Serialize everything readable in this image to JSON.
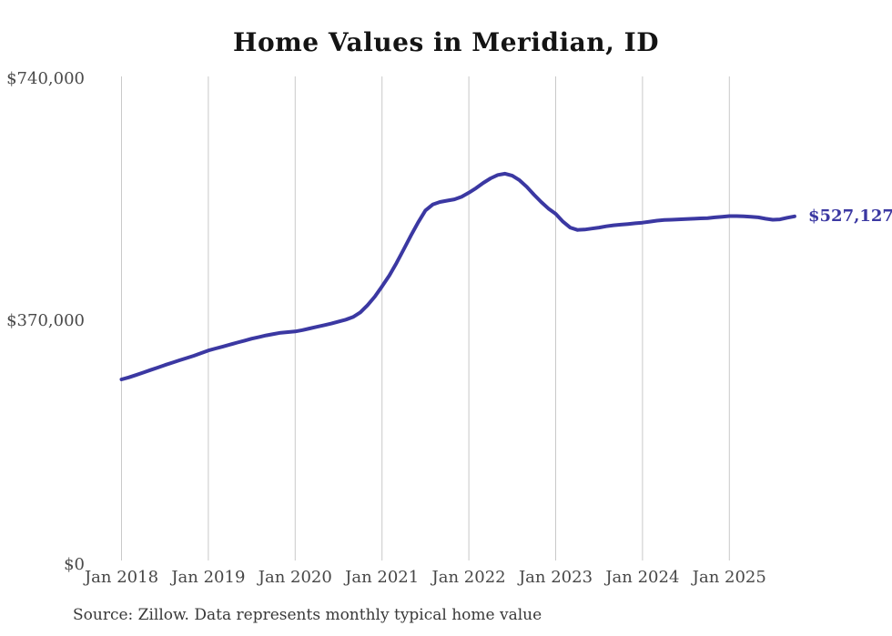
{
  "source_note": "Source: Zillow. Data represents monthly typical home value",
  "colors": {
    "line": "#3b38a2",
    "end_label": "#3b38a2",
    "grid": "#c9c9c9",
    "title": "#141414",
    "axis_text": "#474747",
    "source_text": "#383838",
    "background": "#ffffff"
  },
  "chart_data": {
    "type": "line",
    "title": "Home Values in Meridian, ID",
    "xlabel": "",
    "ylabel": "",
    "ylim": [
      0,
      740000
    ],
    "grid": "vertical-only",
    "legend_position": "none",
    "y_ticks": [
      {
        "label": "$0",
        "value": 0
      },
      {
        "label": "$370,000",
        "value": 370000
      },
      {
        "label": "$740,000",
        "value": 740000
      }
    ],
    "x_ticks": [
      "Jan 2018",
      "Jan 2019",
      "Jan 2020",
      "Jan 2021",
      "Jan 2022",
      "Jan 2023",
      "Jan 2024",
      "Jan 2025"
    ],
    "annotation": {
      "text": "$527,127",
      "value": 527127
    },
    "series": [
      {
        "name": "Monthly typical home value",
        "color": "#3b38a2",
        "cadence": "monthly",
        "start": "2018-01",
        "end": "2025-10",
        "values": [
          279000,
          282000,
          285600,
          289400,
          293200,
          297000,
          300800,
          304500,
          308000,
          311500,
          315000,
          319000,
          323000,
          326000,
          329000,
          332000,
          335000,
          338000,
          341000,
          343500,
          346000,
          348000,
          350000,
          351000,
          352000,
          354000,
          356500,
          359000,
          361500,
          364000,
          367000,
          370000,
          374000,
          381000,
          392000,
          405000,
          420500,
          437000,
          456000,
          477000,
          498000,
          518000,
          536000,
          545000,
          549000,
          551000,
          553000,
          557000,
          563000,
          570000,
          578000,
          585000,
          590000,
          592000,
          589000,
          582000,
          572000,
          560000,
          549000,
          539000,
          531000,
          519000,
          510000,
          506500,
          507000,
          508500,
          510000,
          512000,
          513500,
          514500,
          515500,
          516500,
          517500,
          519000,
          520500,
          521500,
          522000,
          522500,
          523000,
          523500,
          524000,
          524500,
          525500,
          526500,
          527500,
          527500,
          527000,
          526500,
          525500,
          523500,
          522000,
          522500,
          525000,
          527127
        ]
      }
    ]
  }
}
